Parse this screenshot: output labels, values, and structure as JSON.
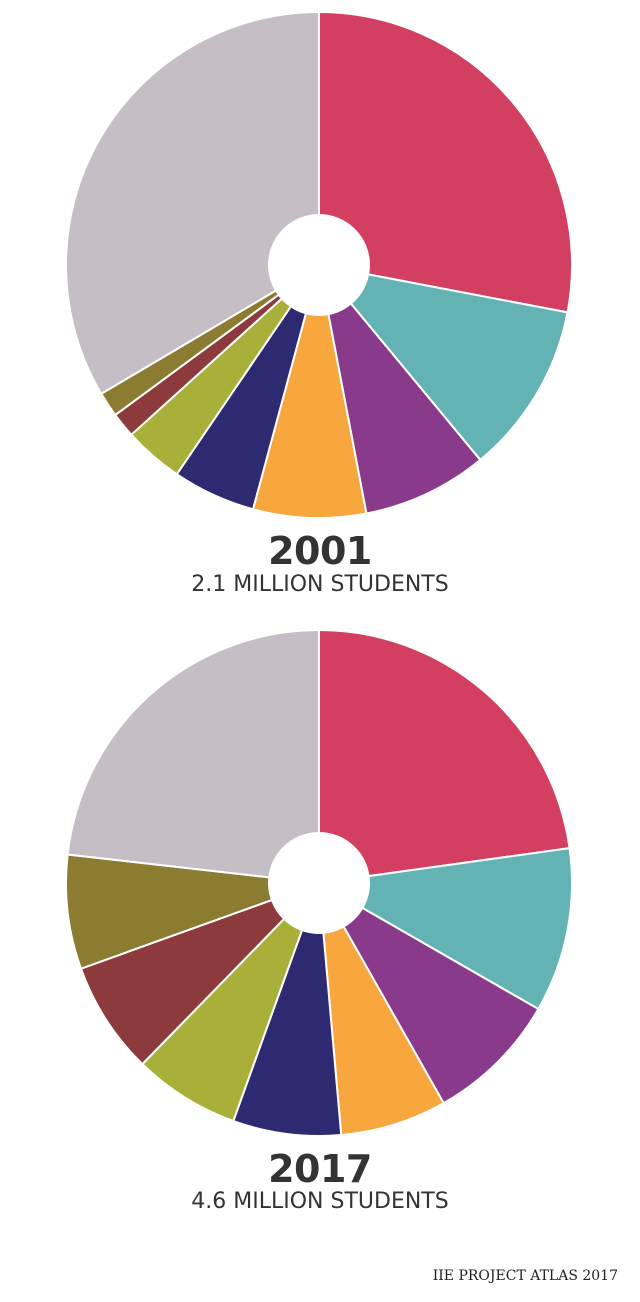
{
  "chart_data": [
    {
      "type": "pie",
      "title": "2001",
      "subtitle": "2.1 MILLION STUDENTS",
      "values": [
        28,
        11,
        8,
        7.2,
        5.3,
        3.8,
        1.6,
        1.6,
        33.5
      ],
      "colors": [
        "#d23f60",
        "#63b3b5",
        "#8a3a8b",
        "#f8a63e",
        "#2e2a72",
        "#a8b03a",
        "#8c3a3b",
        "#8b7c32",
        "#c5bec5"
      ]
    },
    {
      "type": "pie",
      "title": "2017",
      "subtitle": "4.6 MILLION STUDENTS",
      "values": [
        22.8,
        10.5,
        8.5,
        6.8,
        6.9,
        6.8,
        7.2,
        7.3,
        23.2
      ],
      "colors": [
        "#d23f60",
        "#63b3b5",
        "#8a3a8b",
        "#f8a63e",
        "#2e2a72",
        "#a8b03a",
        "#8c3a3b",
        "#8b7c32",
        "#c5bec5"
      ]
    }
  ],
  "labels": {
    "year_2001": "2001",
    "students_2001": "2.1 MILLION STUDENTS",
    "year_2017": "2017",
    "students_2017": "4.6 MILLION STUDENTS",
    "source": "IIE PROJECT ATLAS 2017"
  }
}
